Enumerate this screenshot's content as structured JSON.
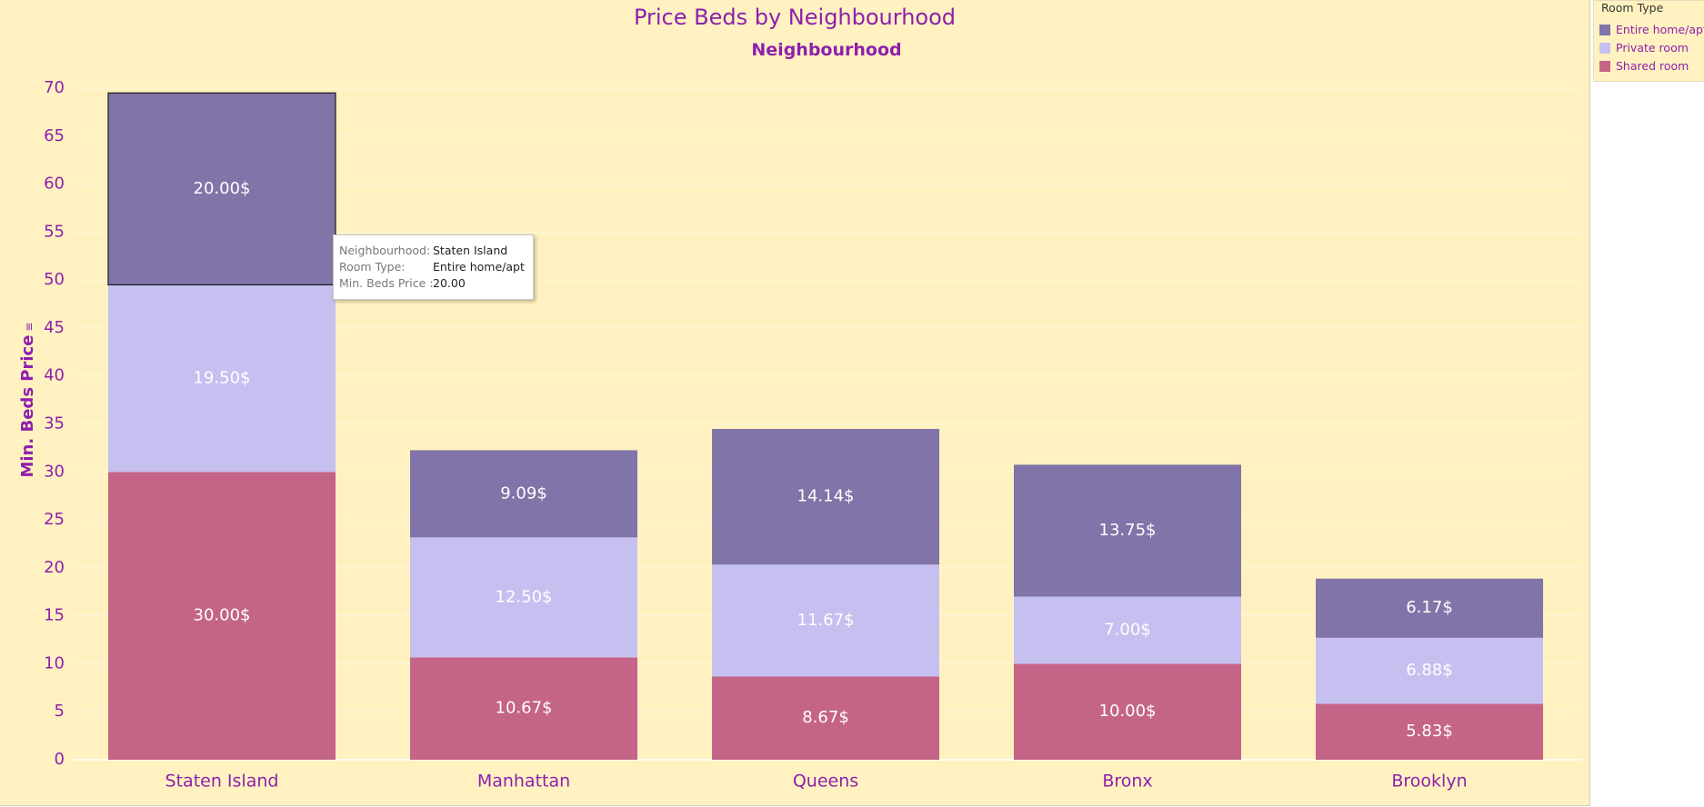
{
  "chart_data": {
    "type": "bar",
    "stacked": true,
    "title": "Price Beds by  Neighbourhood",
    "subtitle": "Neighbourhood",
    "ylabel": "Min. Beds Price",
    "ylim": [
      0,
      70
    ],
    "yticks": [
      0,
      5,
      10,
      15,
      20,
      25,
      30,
      35,
      40,
      45,
      50,
      55,
      60,
      65,
      70
    ],
    "grid": true,
    "categories": [
      "Staten Island",
      "Manhattan",
      "Queens",
      "Bronx",
      "Brooklyn"
    ],
    "series": [
      {
        "name": "Shared room",
        "color": "#c46487",
        "values": [
          30.0,
          10.67,
          8.67,
          10.0,
          5.83
        ],
        "labels": [
          "30.00$",
          "10.67$",
          "8.67$",
          "10.00$",
          "5.83$"
        ]
      },
      {
        "name": "Private room",
        "color": "#c6c0f0",
        "values": [
          19.5,
          12.5,
          11.67,
          7.0,
          6.88
        ],
        "labels": [
          "19.50$",
          "12.50$",
          "11.67$",
          "7.00$",
          "6.88$"
        ]
      },
      {
        "name": "Entire home/apt",
        "color": "#8174a8",
        "values": [
          20.0,
          9.09,
          14.14,
          13.75,
          6.17
        ],
        "labels": [
          "20.00$",
          "9.09$",
          "14.14$",
          "13.75$",
          "6.17$"
        ]
      }
    ],
    "highlight": {
      "category_index": 0,
      "series_index": 2
    },
    "legend": {
      "title": "Room Type",
      "position": "top-right",
      "items": [
        {
          "label": "Entire home/apt",
          "color": "#8174a8"
        },
        {
          "label": "Private room",
          "color": "#c6c0f0"
        },
        {
          "label": "Shared room",
          "color": "#c46487"
        }
      ]
    }
  },
  "tooltip": {
    "rows": [
      {
        "key": "Neighbourhood:",
        "value": "Staten Island"
      },
      {
        "key": "Room Type:",
        "value": "Entire home/apt"
      },
      {
        "key": "Min. Beds Price :",
        "value": "20.00"
      }
    ]
  },
  "y_axis_sort_icon": "sort-icon"
}
